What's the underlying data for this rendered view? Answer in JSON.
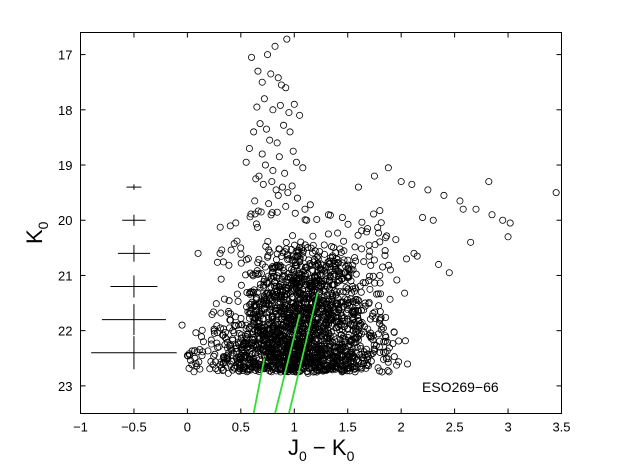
{
  "chart_data": {
    "type": "scatter",
    "xlabel_main": "J",
    "xlabel_sub1": "0",
    "xlabel_sep": " − ",
    "xlabel_main2": "K",
    "xlabel_sub2": "0",
    "ylabel_main": "K",
    "ylabel_sub": "0",
    "xlim": [
      -1,
      3.5
    ],
    "ylim": [
      23.5,
      16.6
    ],
    "y_inverted": true,
    "xticks": [
      -1,
      -0.5,
      0,
      0.5,
      1,
      1.5,
      2,
      2.5,
      3,
      3.5
    ],
    "xtick_labels": [
      "−1",
      "−0.5",
      "0",
      "0.5",
      "1",
      "1.5",
      "2",
      "2.5",
      "3",
      "3.5"
    ],
    "yticks": [
      17,
      18,
      19,
      20,
      21,
      22,
      23
    ],
    "ytick_labels": [
      "17",
      "18",
      "19",
      "20",
      "21",
      "22",
      "23"
    ],
    "annotation": "ESO269−66",
    "grid": false,
    "marker": "open-circle",
    "error_bars": [
      {
        "x": -0.5,
        "y": 19.4,
        "xerr": 0.07,
        "yerr": 0.05
      },
      {
        "x": -0.5,
        "y": 20.0,
        "xerr": 0.11,
        "yerr": 0.1
      },
      {
        "x": -0.5,
        "y": 20.6,
        "xerr": 0.15,
        "yerr": 0.15
      },
      {
        "x": -0.5,
        "y": 21.2,
        "xerr": 0.22,
        "yerr": 0.2
      },
      {
        "x": -0.5,
        "y": 21.8,
        "xerr": 0.3,
        "yerr": 0.28
      },
      {
        "x": -0.5,
        "y": 22.4,
        "xerr": 0.4,
        "yerr": 0.3
      }
    ],
    "green_lines": [
      {
        "x": [
          0.62,
          0.72
        ],
        "y": [
          23.5,
          22.5
        ],
        "color": "#33dd33"
      },
      {
        "x": [
          0.82,
          1.05
        ],
        "y": [
          23.5,
          21.7
        ],
        "color": "#33dd33"
      },
      {
        "x": [
          0.95,
          1.22
        ],
        "y": [
          23.5,
          21.3
        ],
        "color": "#33dd33"
      }
    ],
    "points_x": [
      0.75,
      0.82,
      0.93,
      0.6,
      0.66,
      0.7,
      0.78,
      0.85,
      0.88,
      0.92,
      0.72,
      0.65,
      0.8,
      0.87,
      0.95,
      1.0,
      1.05,
      0.68,
      0.74,
      0.9,
      0.96,
      0.62,
      0.77,
      0.84,
      0.58,
      0.7,
      0.99,
      1.02,
      0.86,
      0.73,
      0.8,
      0.91,
      1.08,
      0.67,
      0.55,
      0.64,
      0.71,
      0.79,
      0.83,
      0.89,
      0.94,
      0.98,
      1.03,
      0.63,
      0.76,
      0.85,
      0.92,
      1.1,
      1.15,
      0.69,
      1.32,
      1.45,
      1.6,
      1.75,
      1.88,
      2.0,
      2.1,
      2.25,
      2.4,
      2.55,
      2.7,
      2.82,
      2.95,
      3.02,
      3.45,
      2.58,
      2.65,
      2.85,
      3.0,
      1.95,
      2.2,
      2.3,
      2.12,
      1.7,
      1.85,
      2.05,
      2.15,
      2.35,
      2.45,
      1.9,
      1.65,
      1.55,
      1.8,
      0.1,
      0.15,
      0.0,
      -0.05,
      0.07
    ],
    "points_y": [
      17.0,
      16.85,
      16.72,
      17.05,
      17.3,
      17.5,
      17.35,
      17.42,
      17.55,
      17.6,
      17.8,
      17.95,
      18.0,
      17.92,
      18.05,
      17.9,
      18.1,
      18.25,
      18.35,
      18.28,
      18.4,
      18.4,
      18.55,
      18.6,
      18.7,
      18.8,
      18.75,
      18.95,
      18.85,
      19.0,
      19.1,
      19.15,
      19.05,
      19.2,
      18.95,
      19.25,
      19.35,
      19.3,
      19.45,
      19.4,
      19.5,
      19.38,
      19.6,
      19.65,
      19.7,
      19.55,
      19.75,
      19.8,
      19.72,
      19.85,
      19.9,
      19.95,
      19.4,
      19.2,
      19.05,
      19.3,
      19.35,
      19.45,
      19.55,
      19.65,
      19.8,
      19.3,
      20.0,
      20.05,
      19.5,
      19.8,
      20.4,
      19.9,
      20.3,
      20.35,
      19.95,
      20.0,
      20.6,
      20.45,
      20.55,
      20.7,
      20.65,
      20.8,
      20.95,
      20.9,
      20.75,
      20.9,
      21.0,
      20.6,
      22.2,
      22.45,
      21.9,
      22.5
    ]
  }
}
